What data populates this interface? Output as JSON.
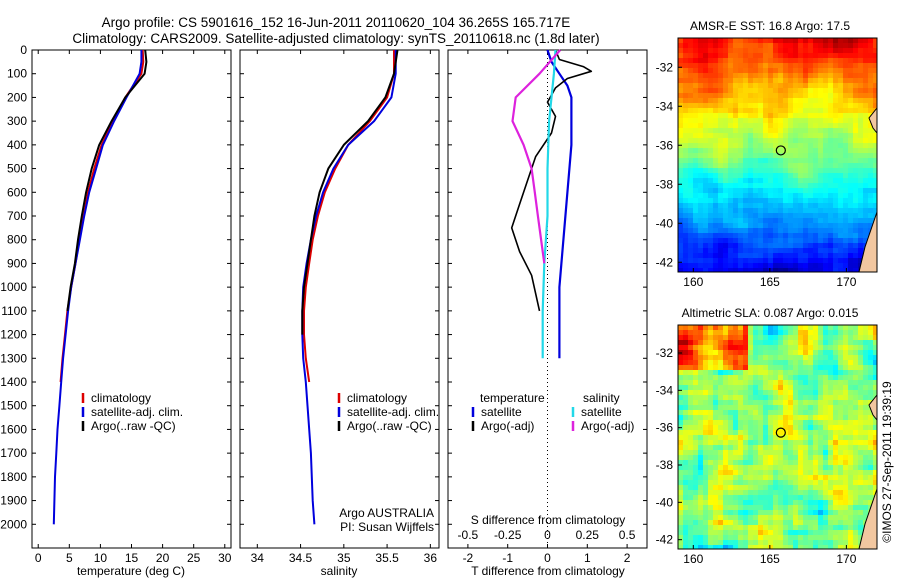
{
  "header": {
    "line1": "Argo profile: CS 5901616_152 16-Jun-2011 20110620_104 36.265S 165.717E",
    "line2": "Climatology: CARS2009. Satellite-adjusted climatology: synTS_20110618.nc (1.8d later)"
  },
  "colors": {
    "climatology": "#dd0000",
    "satellite": "#0000dd",
    "argo": "#000000",
    "sal_satellite": "#22d8e8",
    "sal_argo": "#dd22dd"
  },
  "chart_data": [
    {
      "type": "line",
      "panel": "temperature",
      "xlabel": "temperature (deg C)",
      "ylabel": "",
      "xlim": [
        -1,
        31
      ],
      "ylim": [
        2100,
        0
      ],
      "xticks": [
        0,
        5,
        10,
        15,
        20,
        25,
        30
      ],
      "yticks": [
        0,
        100,
        200,
        300,
        400,
        500,
        600,
        700,
        800,
        900,
        1000,
        1100,
        1200,
        1300,
        1400,
        1500,
        1600,
        1700,
        1800,
        1900,
        2000
      ],
      "legend": [
        "climatology",
        "satellite-adj. clim.",
        "Argo(..raw -QC)"
      ],
      "legend_position": "lower-middle",
      "series": [
        {
          "name": "climatology",
          "color_key": "climatology",
          "points": [
            [
              16.8,
              0
            ],
            [
              16.9,
              50
            ],
            [
              16.6,
              100
            ],
            [
              14.0,
              200
            ],
            [
              12.0,
              300
            ],
            [
              10.2,
              400
            ],
            [
              9.0,
              500
            ],
            [
              8.0,
              600
            ],
            [
              7.3,
              700
            ],
            [
              6.6,
              800
            ],
            [
              6.0,
              900
            ],
            [
              5.3,
              1000
            ],
            [
              4.7,
              1100
            ],
            [
              4.3,
              1200
            ],
            [
              3.9,
              1300
            ],
            [
              3.6,
              1400
            ]
          ]
        },
        {
          "name": "satellite-adj. clim.",
          "color_key": "satellite",
          "points": [
            [
              16.6,
              0
            ],
            [
              16.6,
              50
            ],
            [
              16.3,
              100
            ],
            [
              14.2,
              200
            ],
            [
              12.2,
              300
            ],
            [
              10.4,
              400
            ],
            [
              9.3,
              500
            ],
            [
              8.2,
              600
            ],
            [
              7.4,
              700
            ],
            [
              6.7,
              800
            ],
            [
              6.0,
              900
            ],
            [
              5.3,
              1000
            ],
            [
              4.8,
              1100
            ],
            [
              4.4,
              1200
            ],
            [
              4.0,
              1300
            ],
            [
              3.7,
              1400
            ],
            [
              3.4,
              1500
            ],
            [
              3.1,
              1600
            ],
            [
              2.9,
              1700
            ],
            [
              2.7,
              1800
            ],
            [
              2.6,
              1900
            ],
            [
              2.5,
              2000
            ]
          ]
        },
        {
          "name": "Argo(..raw -QC)",
          "color_key": "argo",
          "points": [
            [
              17.2,
              0
            ],
            [
              17.4,
              50
            ],
            [
              17.1,
              100
            ],
            [
              14.0,
              200
            ],
            [
              11.8,
              300
            ],
            [
              9.8,
              400
            ],
            [
              8.6,
              500
            ],
            [
              7.7,
              600
            ],
            [
              7.0,
              700
            ],
            [
              6.4,
              800
            ],
            [
              5.9,
              900
            ],
            [
              5.2,
              1000
            ],
            [
              4.7,
              1100
            ]
          ]
        }
      ]
    },
    {
      "type": "line",
      "panel": "salinity",
      "xlabel": "salinity",
      "ylabel": "",
      "xlim": [
        33.8,
        36.1
      ],
      "ylim": [
        2100,
        0
      ],
      "xticks": [
        34,
        34.5,
        35,
        35.5,
        36
      ],
      "legend": [
        "climatology",
        "satellite-adj. clim.",
        "Argo(..raw -QC)"
      ],
      "legend_position": "lower-middle",
      "annotation": [
        "Argo AUSTRALIA",
        "PI: Susan Wijffels"
      ],
      "series": [
        {
          "name": "climatology",
          "color_key": "climatology",
          "points": [
            [
              35.58,
              0
            ],
            [
              35.58,
              100
            ],
            [
              35.5,
              200
            ],
            [
              35.3,
              300
            ],
            [
              35.05,
              400
            ],
            [
              34.9,
              500
            ],
            [
              34.78,
              600
            ],
            [
              34.7,
              700
            ],
            [
              34.64,
              800
            ],
            [
              34.6,
              900
            ],
            [
              34.56,
              1000
            ],
            [
              34.54,
              1100
            ],
            [
              34.54,
              1200
            ],
            [
              34.56,
              1300
            ],
            [
              34.6,
              1400
            ]
          ]
        },
        {
          "name": "satellite-adj. clim.",
          "color_key": "satellite",
          "points": [
            [
              35.6,
              0
            ],
            [
              35.6,
              100
            ],
            [
              35.55,
              200
            ],
            [
              35.35,
              300
            ],
            [
              35.05,
              400
            ],
            [
              34.88,
              500
            ],
            [
              34.76,
              600
            ],
            [
              34.68,
              700
            ],
            [
              34.62,
              800
            ],
            [
              34.57,
              900
            ],
            [
              34.53,
              1000
            ],
            [
              34.52,
              1100
            ],
            [
              34.52,
              1200
            ],
            [
              34.53,
              1300
            ],
            [
              34.56,
              1400
            ],
            [
              34.58,
              1500
            ],
            [
              34.6,
              1600
            ],
            [
              34.62,
              1700
            ],
            [
              34.63,
              1800
            ],
            [
              34.64,
              1900
            ],
            [
              34.66,
              2000
            ]
          ]
        },
        {
          "name": "Argo(..raw -QC)",
          "color_key": "argo",
          "points": [
            [
              35.62,
              0
            ],
            [
              35.58,
              100
            ],
            [
              35.48,
              200
            ],
            [
              35.28,
              300
            ],
            [
              35.0,
              400
            ],
            [
              34.82,
              500
            ],
            [
              34.72,
              600
            ],
            [
              34.66,
              700
            ],
            [
              34.62,
              800
            ],
            [
              34.58,
              900
            ],
            [
              34.54,
              1000
            ],
            [
              34.52,
              1100
            ],
            [
              34.52,
              1200
            ]
          ]
        }
      ]
    },
    {
      "type": "line",
      "panel": "difference",
      "xlabel": "T difference from climatology",
      "xlabel_top": "S difference from climatology",
      "ylabel": "",
      "xlim": [
        -2.5,
        2.5
      ],
      "ylim": [
        2100,
        0
      ],
      "xticks": [
        -2,
        -1,
        0,
        1,
        2
      ],
      "xticks_s": [
        -0.5,
        -0.25,
        0,
        0.25,
        0.5
      ],
      "xticks_s_labels": [
        "-0.5",
        "-0.25",
        "0",
        "0.25",
        "0.5"
      ],
      "legend_temperature": {
        "title": "temperature",
        "items": [
          "satellite",
          "Argo(-adj)"
        ]
      },
      "legend_salinity": {
        "title": "salinity",
        "items": [
          "satellite",
          "Argo(-adj)"
        ]
      },
      "series": [
        {
          "name": "satellite",
          "group": "temperature",
          "color_key": "satellite",
          "points": [
            [
              0.0,
              0
            ],
            [
              0.1,
              50
            ],
            [
              0.3,
              100
            ],
            [
              0.5,
              150
            ],
            [
              0.6,
              200
            ],
            [
              0.6,
              300
            ],
            [
              0.6,
              400
            ],
            [
              0.55,
              500
            ],
            [
              0.5,
              600
            ],
            [
              0.45,
              700
            ],
            [
              0.4,
              800
            ],
            [
              0.35,
              900
            ],
            [
              0.3,
              1000
            ],
            [
              0.3,
              1100
            ],
            [
              0.3,
              1200
            ],
            [
              0.3,
              1300
            ]
          ]
        },
        {
          "name": "Argo(-adj)",
          "group": "temperature",
          "color_key": "argo",
          "points": [
            [
              0.2,
              0
            ],
            [
              0.3,
              40
            ],
            [
              0.9,
              70
            ],
            [
              1.1,
              90
            ],
            [
              0.5,
              120
            ],
            [
              0.2,
              160
            ],
            [
              0.0,
              220
            ],
            [
              0.2,
              280
            ],
            [
              0.1,
              350
            ],
            [
              -0.3,
              450
            ],
            [
              -0.5,
              550
            ],
            [
              -0.7,
              650
            ],
            [
              -0.9,
              750
            ],
            [
              -0.7,
              850
            ],
            [
              -0.4,
              950
            ],
            [
              -0.2,
              1100
            ]
          ]
        },
        {
          "name": "satellite",
          "group": "salinity",
          "color_key": "sal_satellite",
          "points": [
            [
              0.05,
              0
            ],
            [
              0.04,
              100
            ],
            [
              0.01,
              300
            ],
            [
              0.0,
              500
            ],
            [
              0.0,
              700
            ],
            [
              -0.02,
              900
            ],
            [
              -0.03,
              1100
            ],
            [
              -0.03,
              1300
            ]
          ]
        },
        {
          "name": "Argo(-adj)",
          "group": "salinity",
          "color_key": "sal_argo",
          "points": [
            [
              0.08,
              0
            ],
            [
              -0.05,
              100
            ],
            [
              -0.2,
              200
            ],
            [
              -0.22,
              300
            ],
            [
              -0.15,
              400
            ],
            [
              -0.1,
              500
            ],
            [
              -0.08,
              600
            ],
            [
              -0.06,
              700
            ],
            [
              -0.04,
              800
            ],
            [
              -0.02,
              900
            ]
          ]
        }
      ]
    },
    {
      "type": "heatmap",
      "panel": "sst_map",
      "title": "AMSR-E SST: 16.8 Argo: 17.5",
      "xticks": [
        160,
        165,
        170
      ],
      "yticks": [
        -32,
        -34,
        -36,
        -38,
        -40,
        -42
      ],
      "xlim": [
        159,
        172
      ],
      "ylim": [
        -42.5,
        -30.5
      ],
      "marker": [
        165.717,
        -36.265
      ]
    },
    {
      "type": "heatmap",
      "panel": "sla_map",
      "title": "Altimetric SLA: 0.087 Argo: 0.015",
      "xticks": [
        160,
        165,
        170
      ],
      "yticks": [
        -32,
        -34,
        -36,
        -38,
        -40,
        -42
      ],
      "xlim": [
        159,
        172
      ],
      "ylim": [
        -42.5,
        -30.5
      ],
      "marker": [
        165.717,
        -36.265
      ]
    }
  ],
  "footer": {
    "credit": "©IMOS 27-Sep-2011 19:39:19"
  }
}
